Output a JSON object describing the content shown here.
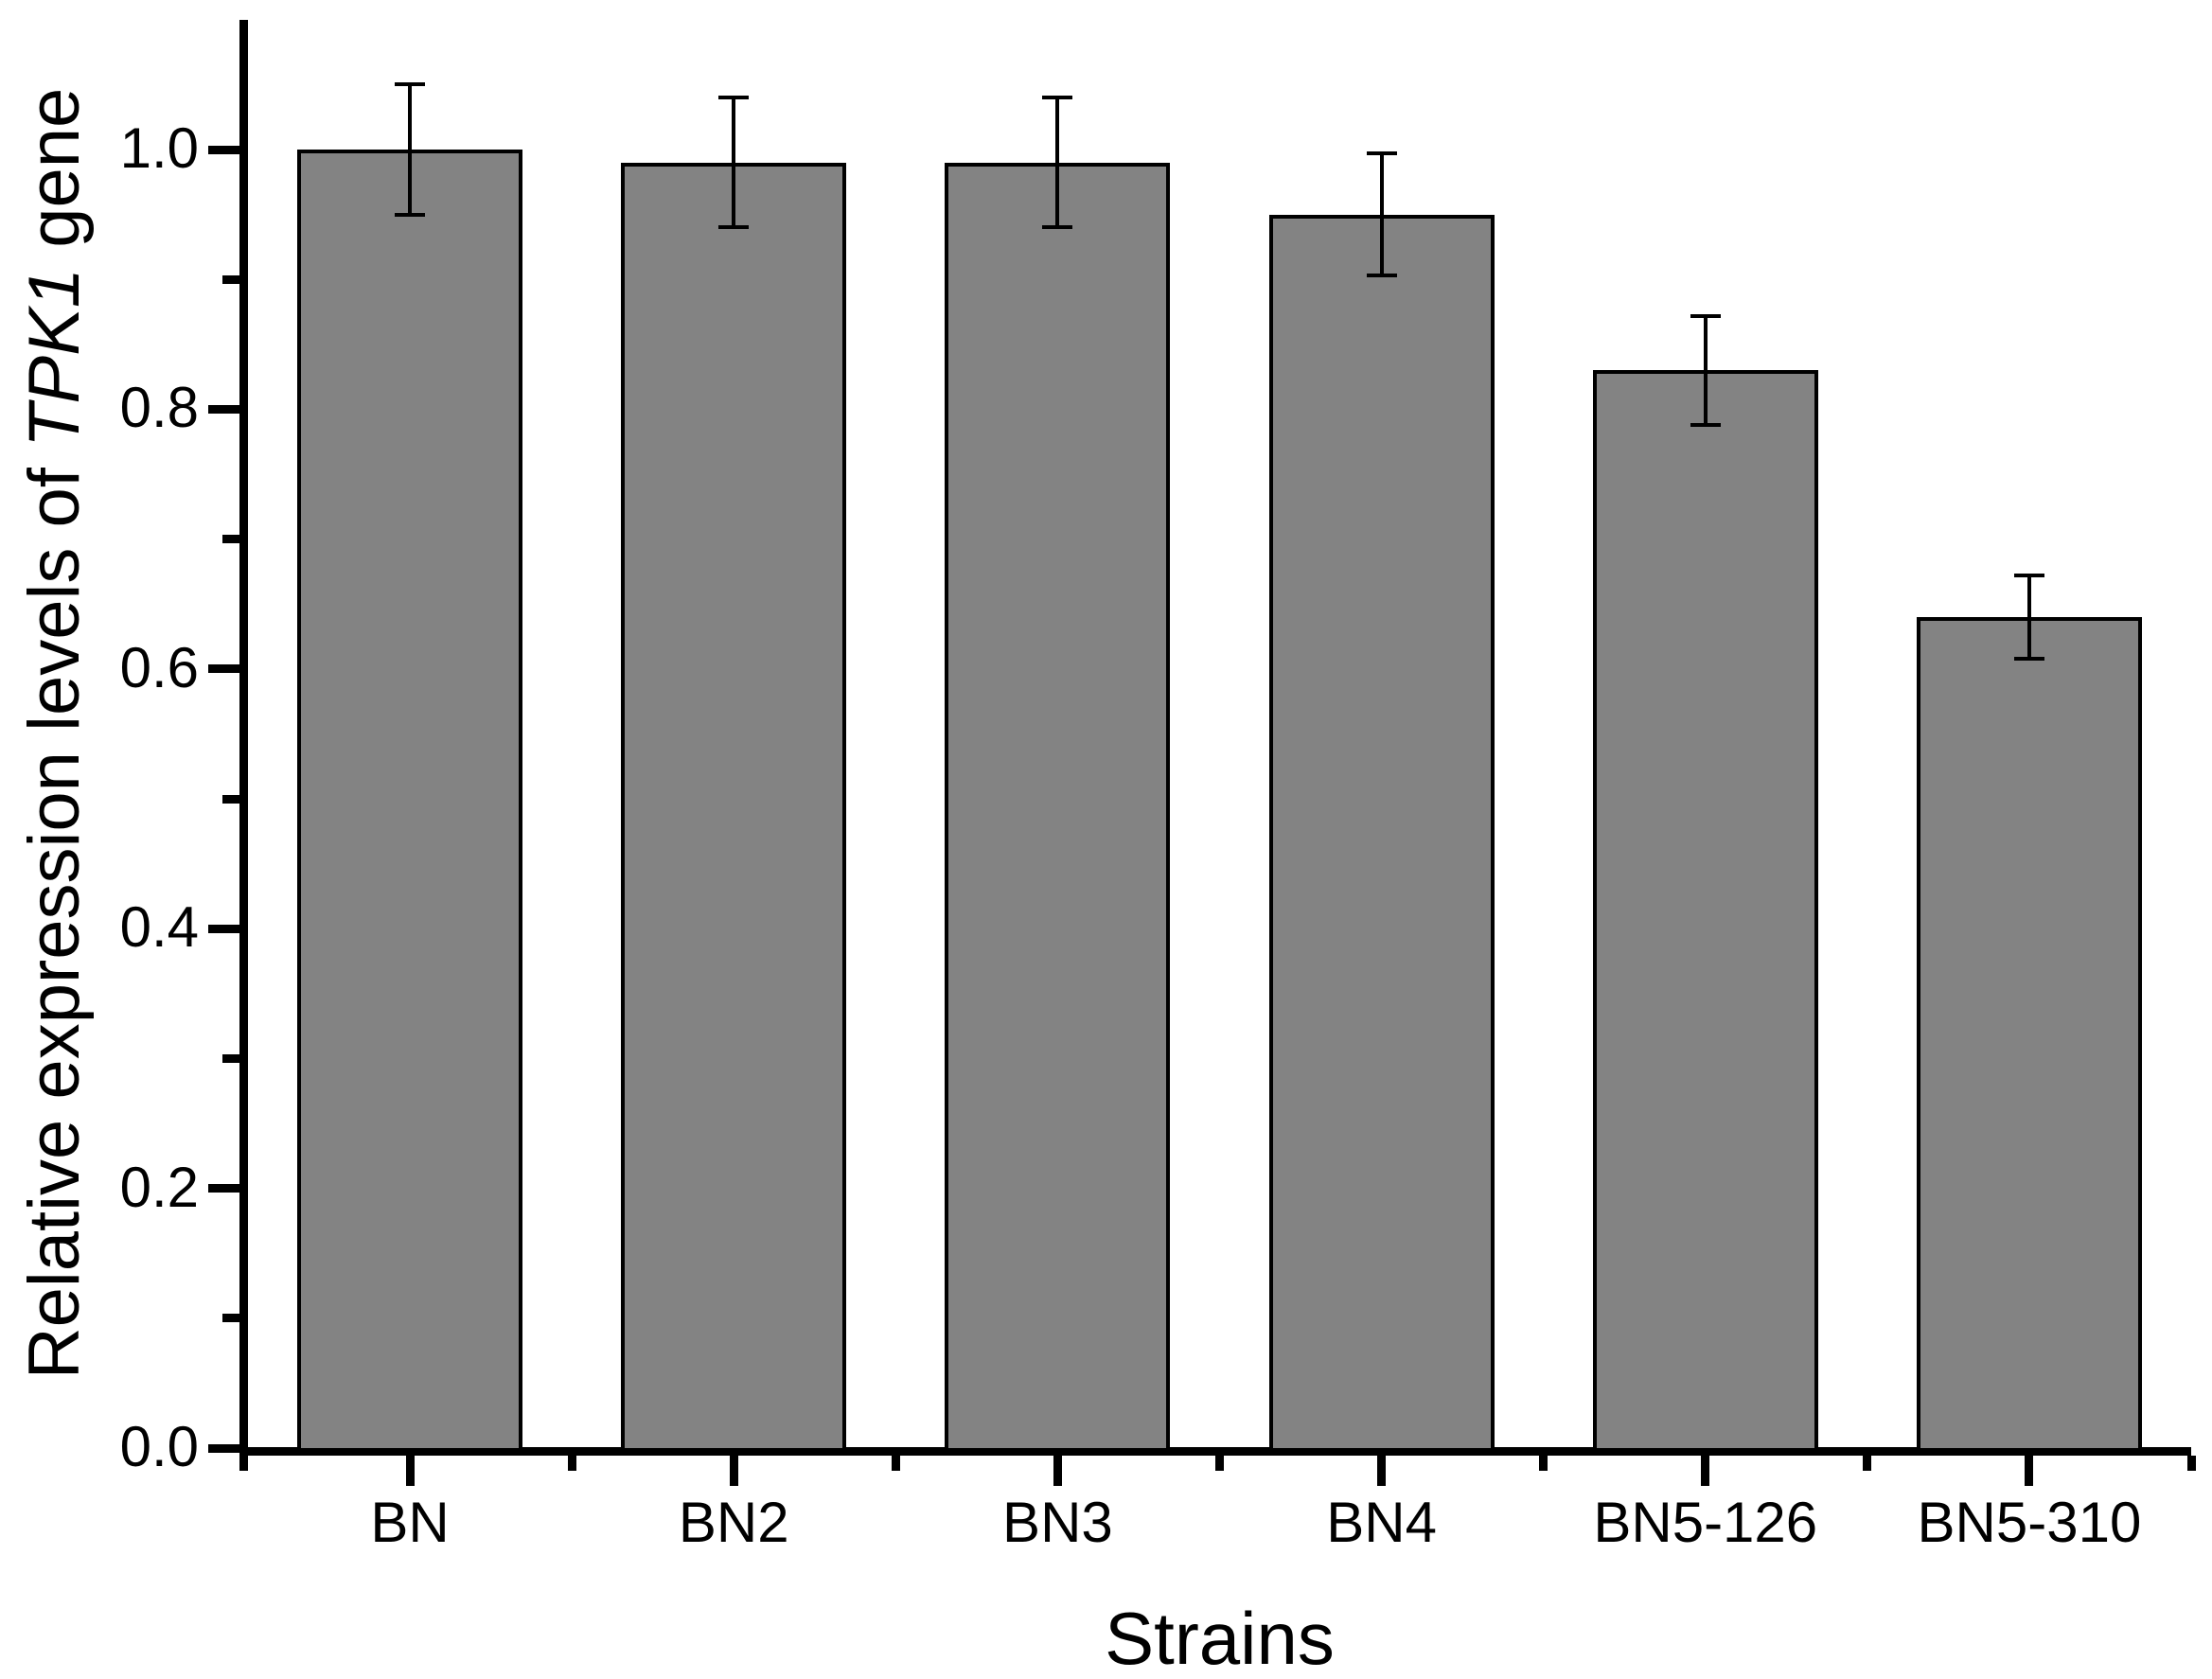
{
  "figure_title": "",
  "axes": {
    "ylabel_prefix": "Relative expression levels of ",
    "ylabel_italic": "TPK1",
    "ylabel_suffix": " gene",
    "xlabel": "Strains"
  },
  "chart_data": {
    "type": "bar",
    "title": "",
    "xlabel": "Strains",
    "ylabel": "Relative expression levels of TPK1 gene",
    "ylabel_italic_token": "TPK1",
    "categories": [
      "BN",
      "BN2",
      "BN3",
      "BN4",
      "BN5-126",
      "BN5-310"
    ],
    "values": [
      1.0,
      0.99,
      0.99,
      0.95,
      0.83,
      0.64
    ],
    "errors": [
      0.05,
      0.05,
      0.05,
      0.047,
      0.042,
      0.032
    ],
    "error_style": "symmetric-caps",
    "ylim": [
      0.0,
      1.1
    ],
    "yticks_major": [
      0.0,
      0.2,
      0.4,
      0.6,
      0.8,
      1.0
    ],
    "ytick_label_format": "one-decimal",
    "yticks_minor": [
      0.1,
      0.3,
      0.5,
      0.7,
      0.9
    ],
    "xticks_minor_at_category_boundaries": true,
    "grid": false,
    "legend": null,
    "bar_fill_color": "#838383",
    "bar_border_color": "#000000",
    "error_bar_color": "#000000",
    "axis_color": "#000000",
    "background_color": "#ffffff"
  }
}
